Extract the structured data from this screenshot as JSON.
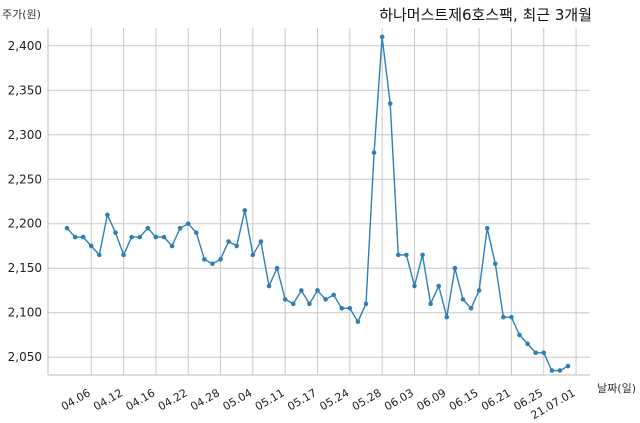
{
  "chart_data": {
    "type": "line",
    "title": "하나머스트제6호스팩, 최근 3개월",
    "ylabel": "주가(원)",
    "xlabel": "날짜(일)",
    "ylim": [
      2030,
      2420
    ],
    "yticks": [
      2050,
      2100,
      2150,
      2200,
      2250,
      2300,
      2350,
      2400
    ],
    "ytick_labels": [
      "2,050",
      "2,100",
      "2,150",
      "2,200",
      "2,250",
      "2,300",
      "2,350",
      "2,400"
    ],
    "xtick_labels": [
      "04.06",
      "04.12",
      "04.16",
      "04.22",
      "04.28",
      "05.04",
      "05.11",
      "05.17",
      "05.24",
      "05.28",
      "06.03",
      "06.09",
      "06.15",
      "06.21",
      "06.25",
      "21.07.01"
    ],
    "xtick_index": [
      3,
      7,
      11,
      15,
      19,
      23,
      27,
      31,
      35,
      39,
      43,
      47,
      51,
      55,
      59,
      63
    ],
    "grid": true,
    "line_color": "#2f7fb5",
    "series": [
      {
        "values": [
          2195,
          2185,
          2185,
          2175,
          2165,
          2210,
          2190,
          2165,
          2185,
          2185,
          2195,
          2185,
          2185,
          2175,
          2195,
          2200,
          2190,
          2160,
          2155,
          2160,
          2180,
          2175,
          2215,
          2165,
          2180,
          2130,
          2150,
          2115,
          2110,
          2125,
          2110,
          2125,
          2115,
          2120,
          2105,
          2105,
          2090,
          2110,
          2280,
          2410,
          2335,
          2165,
          2165,
          2130,
          2165,
          2110,
          2130,
          2095,
          2150,
          2115,
          2105,
          2125,
          2195,
          2155,
          2095,
          2095,
          2075,
          2065,
          2055,
          2055,
          2035,
          2035,
          2040
        ]
      }
    ]
  }
}
